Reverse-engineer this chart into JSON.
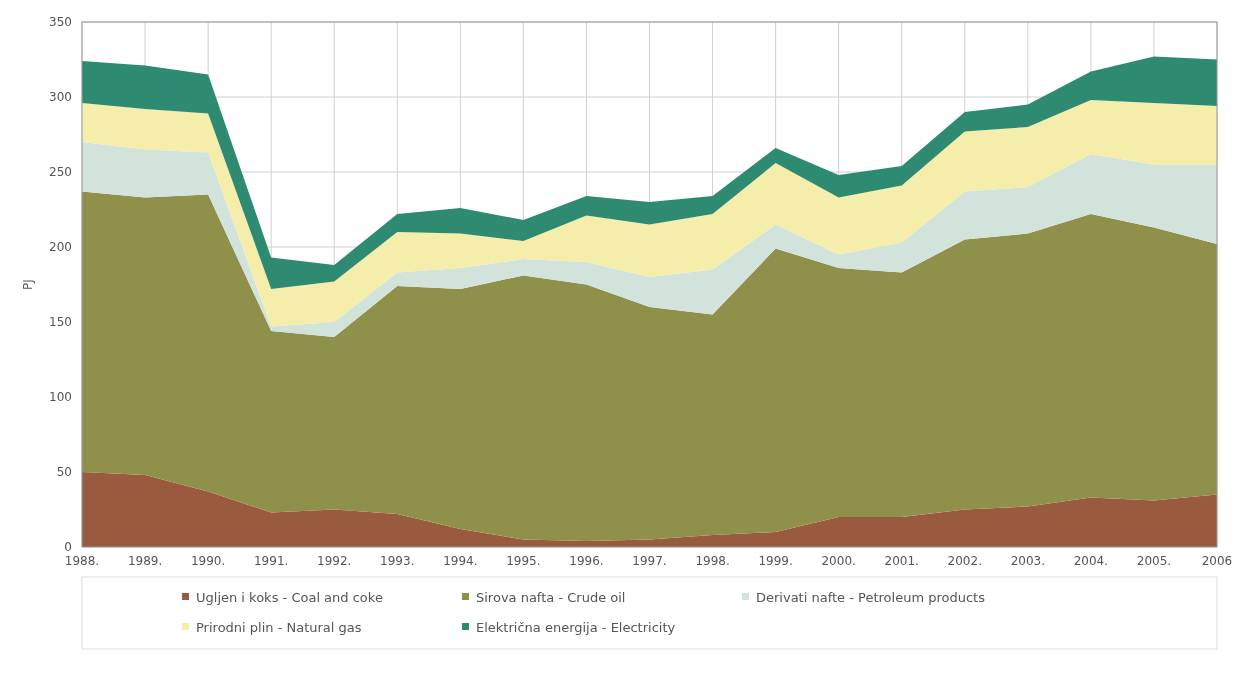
{
  "chart_data": {
    "type": "area",
    "stacked": true,
    "ylabel": "PJ",
    "categories": [
      "1988.",
      "1989.",
      "1990.",
      "1991.",
      "1992.",
      "1993.",
      "1994.",
      "1995.",
      "1996.",
      "1997.",
      "1998.",
      "1999.",
      "2000.",
      "2001.",
      "2002.",
      "2003.",
      "2004.",
      "2005.",
      "2006"
    ],
    "series": [
      {
        "name": "Ugljen i koks - Coal and coke",
        "color": "#9a5a3e",
        "values": [
          50,
          48,
          37,
          23,
          25,
          22,
          12,
          5,
          4,
          5,
          8,
          10,
          20,
          20,
          25,
          27,
          33,
          31,
          35
        ]
      },
      {
        "name": "Sirova nafta - Crude oil",
        "color": "#8f914a",
        "values": [
          187,
          185,
          198,
          121,
          115,
          152,
          160,
          176,
          171,
          155,
          147,
          189,
          166,
          163,
          180,
          182,
          189,
          182,
          167
        ]
      },
      {
        "name": "Derivati nafte - Petroleum products",
        "color": "#d2e3dc",
        "values": [
          33,
          32,
          28,
          3,
          10,
          9,
          14,
          11,
          15,
          20,
          30,
          16,
          9,
          20,
          32,
          31,
          40,
          42,
          53
        ]
      },
      {
        "name": "Prirodni plin - Natural gas",
        "color": "#f5eeaa",
        "values": [
          26,
          27,
          26,
          25,
          27,
          27,
          23,
          12,
          31,
          35,
          37,
          41,
          38,
          38,
          40,
          40,
          36,
          41,
          39
        ]
      },
      {
        "name": "Električna energija - Electricity",
        "color": "#2e8b72",
        "values": [
          28,
          29,
          26,
          21,
          11,
          12,
          17,
          14,
          13,
          15,
          12,
          10,
          15,
          13,
          13,
          15,
          19,
          31,
          31
        ]
      }
    ],
    "ylim": [
      0,
      350
    ],
    "yticks": [
      0,
      50,
      100,
      150,
      200,
      250,
      300,
      350
    ],
    "grid": true,
    "legend": "bottom"
  }
}
